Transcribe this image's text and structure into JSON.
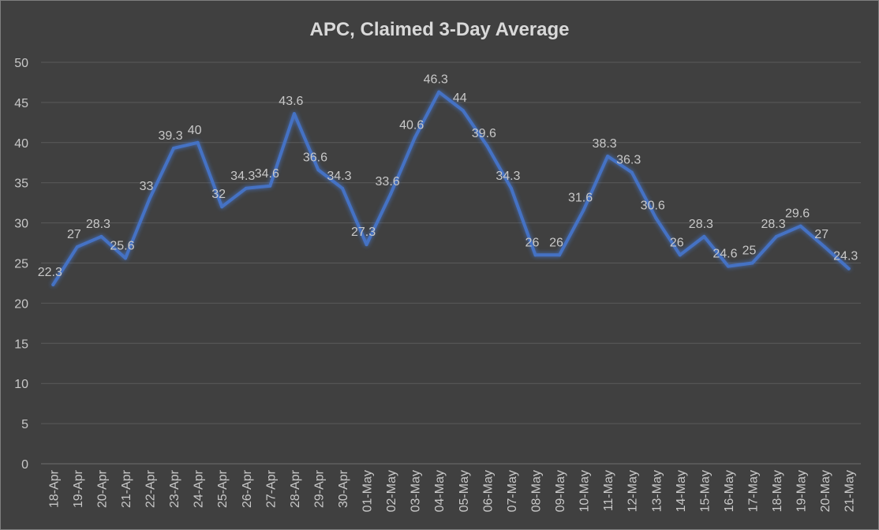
{
  "chart_data": {
    "type": "line",
    "title": "APC, Claimed 3-Day Average",
    "xlabel": "",
    "ylabel": "",
    "ylim": [
      0,
      50
    ],
    "y_ticks": [
      0,
      5,
      10,
      15,
      20,
      25,
      30,
      35,
      40,
      45,
      50
    ],
    "grid": true,
    "legend": "none",
    "categories": [
      "18-Apr",
      "19-Apr",
      "20-Apr",
      "21-Apr",
      "22-Apr",
      "23-Apr",
      "24-Apr",
      "25-Apr",
      "26-Apr",
      "27-Apr",
      "28-Apr",
      "29-Apr",
      "30-Apr",
      "01-May",
      "02-May",
      "03-May",
      "04-May",
      "05-May",
      "06-May",
      "07-May",
      "08-May",
      "09-May",
      "10-May",
      "11-May",
      "12-May",
      "13-May",
      "14-May",
      "15-May",
      "16-May",
      "17-May",
      "18-May",
      "19-May",
      "20-May",
      "21-May"
    ],
    "series": [
      {
        "name": "APC, Claimed 3-Day Average",
        "color": "#4472c4",
        "values": [
          22.3,
          27,
          28.3,
          25.6,
          33,
          39.3,
          40,
          32,
          34.3,
          34.6,
          43.6,
          36.6,
          34.3,
          27.3,
          33.6,
          40.6,
          46.3,
          44,
          39.6,
          34.3,
          26,
          26,
          31.6,
          38.3,
          36.3,
          30.6,
          26,
          28.3,
          24.6,
          25,
          28.3,
          29.6,
          27,
          24.3
        ]
      }
    ]
  }
}
